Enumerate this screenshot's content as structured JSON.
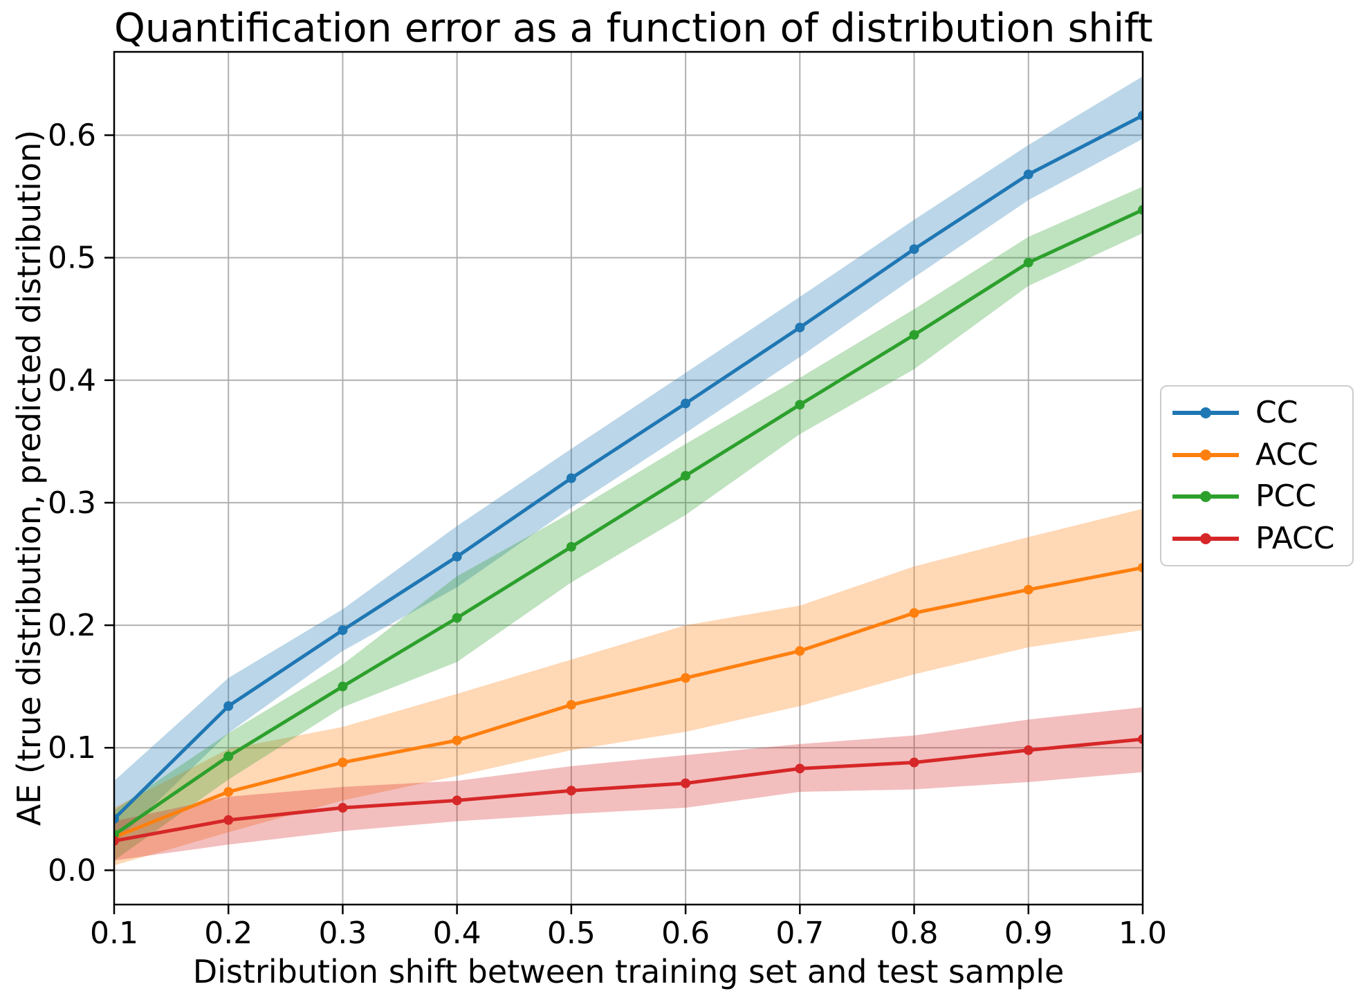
{
  "page": {
    "background": "#ffffff",
    "text_color": "#000000"
  },
  "chart_data": {
    "type": "line",
    "title": "Quantification error as a function of distribution shift",
    "xlabel": "Distribution shift between training set and test sample",
    "ylabel": "AE (true distribution, predicted distribution)",
    "x": [
      0.1,
      0.2,
      0.3,
      0.4,
      0.5,
      0.6,
      0.7,
      0.8,
      0.9,
      1.0
    ],
    "xlim": [
      0.1,
      1.0
    ],
    "ylim": [
      -0.028,
      0.668
    ],
    "xtick_labels": [
      "0.1",
      "0.2",
      "0.3",
      "0.4",
      "0.5",
      "0.6",
      "0.7",
      "0.8",
      "0.9",
      "1.0"
    ],
    "ytick_labels": [
      "0.0",
      "0.1",
      "0.2",
      "0.3",
      "0.4",
      "0.5",
      "0.6"
    ],
    "grid": true,
    "grid_color": "#b0b0b0",
    "spine_color": "#000000",
    "band_opacity": 0.3,
    "legend": {
      "position": "outside-right",
      "entries": [
        "CC",
        "ACC",
        "PCC",
        "PACC"
      ]
    },
    "series": [
      {
        "name": "CC",
        "color": "#1f77b4",
        "values": [
          0.042,
          0.134,
          0.196,
          0.256,
          0.32,
          0.381,
          0.443,
          0.507,
          0.568,
          0.616
        ],
        "band_lower": [
          0.022,
          0.112,
          0.179,
          0.231,
          0.296,
          0.357,
          0.419,
          0.484,
          0.547,
          0.597
        ],
        "band_upper": [
          0.073,
          0.157,
          0.213,
          0.281,
          0.344,
          0.406,
          0.468,
          0.531,
          0.592,
          0.648
        ]
      },
      {
        "name": "ACC",
        "color": "#ff7f0e",
        "values": [
          0.027,
          0.064,
          0.088,
          0.106,
          0.135,
          0.157,
          0.179,
          0.21,
          0.229,
          0.247
        ],
        "band_lower": [
          0.004,
          0.031,
          0.057,
          0.077,
          0.098,
          0.113,
          0.134,
          0.16,
          0.182,
          0.196
        ],
        "band_upper": [
          0.051,
          0.099,
          0.117,
          0.144,
          0.172,
          0.2,
          0.216,
          0.248,
          0.272,
          0.295
        ]
      },
      {
        "name": "PCC",
        "color": "#2ca02c",
        "values": [
          0.029,
          0.093,
          0.15,
          0.206,
          0.264,
          0.322,
          0.38,
          0.437,
          0.496,
          0.539
        ],
        "band_lower": [
          0.008,
          0.074,
          0.133,
          0.17,
          0.235,
          0.29,
          0.356,
          0.409,
          0.477,
          0.52
        ],
        "band_upper": [
          0.049,
          0.112,
          0.168,
          0.24,
          0.292,
          0.348,
          0.402,
          0.458,
          0.517,
          0.558
        ]
      },
      {
        "name": "PACC",
        "color": "#d62728",
        "values": [
          0.024,
          0.041,
          0.051,
          0.057,
          0.065,
          0.071,
          0.083,
          0.088,
          0.098,
          0.107
        ],
        "band_lower": [
          0.008,
          0.021,
          0.032,
          0.04,
          0.046,
          0.051,
          0.064,
          0.066,
          0.072,
          0.08
        ],
        "band_upper": [
          0.04,
          0.06,
          0.068,
          0.073,
          0.085,
          0.094,
          0.103,
          0.11,
          0.123,
          0.133
        ]
      }
    ]
  }
}
